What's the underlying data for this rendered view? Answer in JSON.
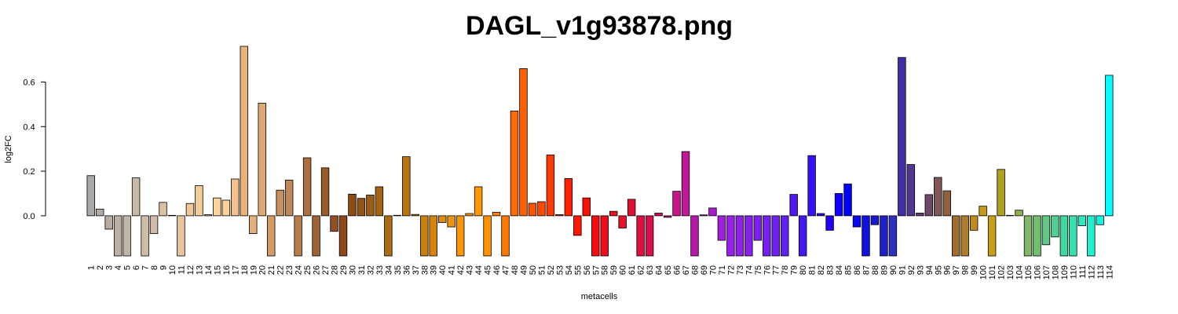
{
  "chart_data": {
    "type": "bar",
    "title": "DAGL_v1g93878.png",
    "xlabel": "metacells",
    "ylabel": "log2FC",
    "categories": [
      "1",
      "2",
      "3",
      "4",
      "5",
      "6",
      "7",
      "8",
      "9",
      "10",
      "11",
      "12",
      "13",
      "14",
      "15",
      "16",
      "17",
      "18",
      "19",
      "20",
      "21",
      "22",
      "23",
      "24",
      "25",
      "26",
      "27",
      "28",
      "29",
      "30",
      "31",
      "32",
      "33",
      "34",
      "35",
      "36",
      "37",
      "38",
      "39",
      "40",
      "41",
      "42",
      "43",
      "44",
      "45",
      "46",
      "47",
      "48",
      "49",
      "50",
      "51",
      "52",
      "53",
      "54",
      "55",
      "56",
      "57",
      "58",
      "59",
      "60",
      "61",
      "62",
      "63",
      "64",
      "65",
      "66",
      "67",
      "68",
      "69",
      "70",
      "71",
      "72",
      "73",
      "74",
      "75",
      "76",
      "77",
      "78",
      "79",
      "80",
      "81",
      "82",
      "83",
      "84",
      "85",
      "86",
      "87",
      "88",
      "89",
      "90",
      "91",
      "92",
      "93",
      "94",
      "95",
      "96",
      "97",
      "98",
      "99",
      "100",
      "101",
      "102",
      "103",
      "104",
      "105",
      "106",
      "107",
      "108",
      "109",
      "110",
      "111",
      "112",
      "113",
      "114"
    ],
    "values": [
      0.18,
      0.03,
      -0.06,
      -0.18,
      -0.18,
      0.17,
      -0.18,
      -0.08,
      0.06,
      0.002,
      -0.18,
      0.055,
      0.135,
      0.005,
      0.08,
      0.07,
      0.165,
      0.76,
      -0.08,
      0.505,
      -0.18,
      0.115,
      0.16,
      -0.18,
      0.26,
      -0.18,
      0.215,
      -0.07,
      -0.18,
      0.097,
      0.078,
      0.093,
      0.13,
      -0.18,
      0.002,
      0.265,
      0.006,
      -0.18,
      -0.18,
      -0.03,
      -0.05,
      -0.18,
      0.01,
      0.13,
      -0.18,
      0.016,
      -0.18,
      0.47,
      0.66,
      0.056,
      0.063,
      0.273,
      0.005,
      0.167,
      -0.088,
      0.08,
      -0.18,
      -0.18,
      0.02,
      -0.055,
      0.074,
      -0.18,
      -0.18,
      0.012,
      -0.007,
      0.11,
      0.288,
      -0.18,
      0.004,
      0.035,
      -0.11,
      -0.18,
      -0.18,
      -0.18,
      -0.11,
      -0.18,
      -0.18,
      -0.18,
      0.096,
      -0.18,
      0.27,
      0.01,
      -0.065,
      0.1,
      0.143,
      -0.05,
      -0.18,
      -0.04,
      -0.18,
      -0.18,
      0.71,
      0.23,
      0.012,
      0.095,
      0.172,
      0.112,
      -0.18,
      -0.18,
      -0.065,
      0.043,
      -0.18,
      0.208,
      0.002,
      0.025,
      -0.18,
      -0.18,
      -0.13,
      -0.095,
      -0.18,
      -0.18,
      -0.045,
      -0.18,
      -0.04,
      0.63
    ],
    "colors": [
      "#a9a9a9",
      "#b4aca4",
      "#b8aca0",
      "#bcb0a4",
      "#c0b4a8",
      "#c8b8a8",
      "#ccbca8",
      "#d0bca8",
      "#d8c0a0",
      "#e0c8a0",
      "#e8c49c",
      "#f0c898",
      "#f4cc98",
      "#f8d098",
      "#fcd49c",
      "#fcd098",
      "#f4c08c",
      "#e8b47c",
      "#e4b07c",
      "#e0a874",
      "#d49c64",
      "#c89060",
      "#c08858",
      "#b87c48",
      "#ac7040",
      "#a06434",
      "#985c2c",
      "#905024",
      "#8c4818",
      "#8c4c14",
      "#945414",
      "#9c5c14",
      "#a46414",
      "#ac6c14",
      "#b47410",
      "#bc7410",
      "#c47c10",
      "#cc8010",
      "#d8840c",
      "#e08c0c",
      "#ec940c",
      "#f89808",
      "#fc9c08",
      "#ff9800",
      "#ff9000",
      "#ff8400",
      "#ff7800",
      "#ff6c00",
      "#ff6000",
      "#ff5400",
      "#ff4800",
      "#ff3c00",
      "#ff3000",
      "#ff2400",
      "#ff1800",
      "#ff1000",
      "#f80c10",
      "#f00c18",
      "#ec1020",
      "#e81028",
      "#e01034",
      "#dc1040",
      "#d8104c",
      "#d41060",
      "#cc1474",
      "#c81488",
      "#c01898",
      "#b818a8",
      "#b018c0",
      "#a81cd0",
      "#a020e0",
      "#9820e8",
      "#9020ec",
      "#8820ec",
      "#8020f0",
      "#7820f0",
      "#7020f0",
      "#6020f0",
      "#5018f0",
      "#4418f0",
      "#3810f4",
      "#2c08f4",
      "#2000f8",
      "#1000fc",
      "#0000ff",
      "#0808f0",
      "#1010e0",
      "#1818d0",
      "#2020c8",
      "#3030c0",
      "#4030a8",
      "#503890",
      "#604078",
      "#704868",
      "#805858",
      "#906040",
      "#a06c30",
      "#b07c28",
      "#c08c20",
      "#c89818",
      "#c8a018",
      "#b0a020",
      "#a0a838",
      "#90b050",
      "#80b868",
      "#70c070",
      "#60c880",
      "#50d090",
      "#40d8a0",
      "#38e0b0",
      "#30e8c0",
      "#20f0d0",
      "#10f8e0",
      "#00ffff"
    ],
    "ylim": [
      -0.18,
      0.76
    ],
    "yticks": [
      {
        "value": 0,
        "label": "0.0"
      },
      0.2,
      0.4,
      0.6
    ],
    "grid": false
  }
}
